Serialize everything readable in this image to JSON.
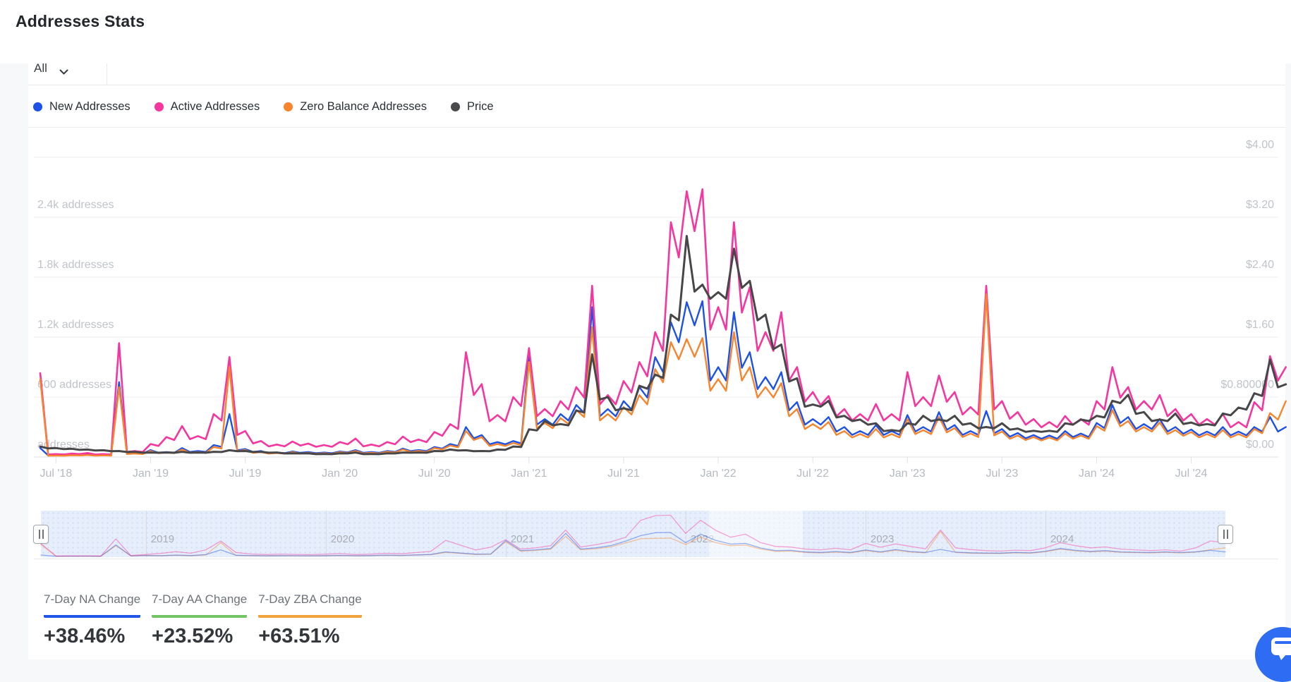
{
  "header": {
    "title": "Addresses Stats"
  },
  "toolbar": {
    "range_dropdown_label": "All"
  },
  "legend": {
    "items": [
      {
        "label": "New Addresses",
        "color": "#1d51e8"
      },
      {
        "label": "Active Addresses",
        "color": "#f6369f"
      },
      {
        "label": "Zero Balance Addresses",
        "color": "#f7852e"
      },
      {
        "label": "Price",
        "color": "#4a4a4c"
      }
    ]
  },
  "stats": [
    {
      "label": "7-Day NA Change",
      "value": "+38.46%",
      "underline_color": "#2256e8"
    },
    {
      "label": "7-Day AA Change",
      "value": "+23.52%",
      "underline_color": "#73c464"
    },
    {
      "label": "7-Day ZBA Change",
      "value": "+63.51%",
      "underline_color": "#f2a23b"
    }
  ],
  "chat": {
    "icon": "chat-bubble-icon",
    "color": "#2e6cf3"
  },
  "chart_data": {
    "type": "line",
    "title": "Addresses Stats",
    "grid": true,
    "legend_position": "top",
    "ylim_addresses": [
      0,
      3000
    ],
    "ylim_price": [
      0,
      4
    ],
    "y_left_axis": {
      "unit": "addresses",
      "gridlines": [
        {
          "value": 2400,
          "label": "2.4k addresses"
        },
        {
          "value": 1800,
          "label": "1.8k addresses"
        },
        {
          "value": 1200,
          "label": "1.2k addresses"
        },
        {
          "value": 600,
          "label": "600 addresses"
        },
        {
          "value": 0,
          "label": "addresses"
        }
      ]
    },
    "y_right_axis": {
      "unit": "USD",
      "gridlines": [
        {
          "value": 4.0,
          "label": "$4.00"
        },
        {
          "value": 3.2,
          "label": "$3.20"
        },
        {
          "value": 2.4,
          "label": "$2.40"
        },
        {
          "value": 1.6,
          "label": "$1.60"
        },
        {
          "value": 0.8,
          "label": "$0.800000"
        },
        {
          "value": 0.0,
          "label": "$0.00"
        }
      ]
    },
    "x_tick_labels": [
      {
        "month": "2018-07",
        "label": "Jul '18"
      },
      {
        "month": "2019-01",
        "label": "Jan '19"
      },
      {
        "month": "2019-07",
        "label": "Jul '19"
      },
      {
        "month": "2020-01",
        "label": "Jan '20"
      },
      {
        "month": "2020-07",
        "label": "Jul '20"
      },
      {
        "month": "2021-01",
        "label": "Jan '21"
      },
      {
        "month": "2021-07",
        "label": "Jul '21"
      },
      {
        "month": "2022-01",
        "label": "Jan '22"
      },
      {
        "month": "2022-07",
        "label": "Jul '22"
      },
      {
        "month": "2023-01",
        "label": "Jan '23"
      },
      {
        "month": "2023-07",
        "label": "Jul '23"
      },
      {
        "month": "2024-01",
        "label": "Jan '24"
      },
      {
        "month": "2024-07",
        "label": "Jul '24"
      }
    ],
    "brush_years": [
      "2019",
      "2020",
      "2021",
      "2022",
      "2023",
      "2024"
    ],
    "x_months": [
      "2018-06",
      "2018-07",
      "2018-08",
      "2018-09",
      "2018-10",
      "2018-11",
      "2018-12",
      "2019-01",
      "2019-02",
      "2019-03",
      "2019-04",
      "2019-05",
      "2019-06",
      "2019-07",
      "2019-08",
      "2019-09",
      "2019-10",
      "2019-11",
      "2019-12",
      "2020-01",
      "2020-02",
      "2020-03",
      "2020-04",
      "2020-05",
      "2020-06",
      "2020-07",
      "2020-08",
      "2020-09",
      "2020-10",
      "2020-11",
      "2020-12",
      "2021-01",
      "2021-02",
      "2021-03",
      "2021-04",
      "2021-05",
      "2021-06",
      "2021-07",
      "2021-08",
      "2021-09",
      "2021-10",
      "2021-11",
      "2021-12",
      "2022-01",
      "2022-02",
      "2022-03",
      "2022-04",
      "2022-05",
      "2022-06",
      "2022-07",
      "2022-08",
      "2022-09",
      "2022-10",
      "2022-11",
      "2022-12",
      "2023-01",
      "2023-02",
      "2023-03",
      "2023-04",
      "2023-05",
      "2023-06",
      "2023-07",
      "2023-08",
      "2023-09",
      "2023-10",
      "2023-11",
      "2023-12",
      "2024-01",
      "2024-02",
      "2024-03",
      "2024-04",
      "2024-05",
      "2024-06",
      "2024-07",
      "2024-08",
      "2024-09",
      "2024-10",
      "2024-11",
      "2024-12",
      "2025-01"
    ],
    "series": [
      {
        "name": "New Addresses",
        "color": "#1d51e8",
        "axis": "addresses",
        "width": 2.4,
        "values": [
          90,
          20,
          22,
          25,
          20,
          750,
          40,
          70,
          50,
          90,
          60,
          120,
          430,
          80,
          60,
          45,
          55,
          50,
          45,
          55,
          70,
          50,
          60,
          85,
          70,
          100,
          130,
          300,
          220,
          150,
          160,
          1030,
          380,
          430,
          520,
          1500,
          480,
          560,
          700,
          1000,
          1350,
          1550,
          1560,
          900,
          1450,
          1050,
          800,
          850,
          550,
          380,
          400,
          300,
          260,
          320,
          260,
          420,
          300,
          450,
          320,
          260,
          460,
          280,
          240,
          220,
          215,
          260,
          235,
          340,
          520,
          400,
          330,
          380,
          300,
          275,
          255,
          300,
          255,
          300,
          400,
          300
        ]
      },
      {
        "name": "Active Addresses",
        "color": "#f6369f",
        "axis": "addresses",
        "width": 2.6,
        "values": [
          840,
          30,
          35,
          40,
          30,
          1140,
          60,
          130,
          200,
          310,
          210,
          430,
          1000,
          260,
          160,
          125,
          155,
          135,
          120,
          150,
          185,
          125,
          150,
          205,
          175,
          250,
          330,
          1050,
          730,
          420,
          600,
          1090,
          480,
          560,
          700,
          1714,
          620,
          760,
          950,
          1250,
          2350,
          2660,
          2680,
          1500,
          2350,
          1700,
          1250,
          1450,
          900,
          650,
          610,
          480,
          430,
          530,
          430,
          850,
          600,
          816,
          650,
          500,
          1714,
          560,
          450,
          380,
          350,
          410,
          380,
          560,
          900,
          700,
          560,
          620,
          480,
          430,
          380,
          430,
          350,
          550,
          1010,
          900
        ]
      },
      {
        "name": "Zero Balance Addresses",
        "color": "#f7852e",
        "axis": "addresses",
        "width": 2.4,
        "values": [
          780,
          15,
          18,
          20,
          16,
          700,
          35,
          60,
          45,
          75,
          50,
          100,
          900,
          70,
          50,
          40,
          48,
          42,
          38,
          48,
          60,
          42,
          52,
          75,
          60,
          90,
          115,
          260,
          200,
          130,
          140,
          950,
          340,
          390,
          470,
          1300,
          430,
          500,
          620,
          880,
          1150,
          1180,
          1190,
          780,
          1250,
          900,
          700,
          740,
          480,
          330,
          350,
          260,
          230,
          280,
          230,
          380,
          270,
          400,
          290,
          235,
          1630,
          255,
          215,
          200,
          195,
          235,
          215,
          310,
          470,
          360,
          300,
          345,
          270,
          250,
          230,
          270,
          230,
          280,
          440,
          560
        ]
      },
      {
        "name": "Price",
        "color": "#474749",
        "axis": "price",
        "width": 3,
        "values": [
          0.14,
          0.12,
          0.11,
          0.1,
          0.09,
          0.08,
          0.07,
          0.06,
          0.06,
          0.07,
          0.06,
          0.07,
          0.09,
          0.08,
          0.07,
          0.06,
          0.05,
          0.05,
          0.04,
          0.05,
          0.06,
          0.04,
          0.05,
          0.06,
          0.06,
          0.08,
          0.1,
          0.09,
          0.08,
          0.1,
          0.14,
          0.37,
          0.48,
          0.44,
          0.62,
          1.37,
          0.8,
          0.65,
          0.95,
          1.1,
          1.9,
          2.95,
          2.3,
          2.2,
          2.78,
          2.35,
          1.9,
          1.5,
          1.05,
          0.7,
          0.75,
          0.55,
          0.5,
          0.45,
          0.36,
          0.45,
          0.55,
          0.5,
          0.55,
          0.45,
          0.4,
          0.45,
          0.38,
          0.35,
          0.35,
          0.45,
          0.5,
          0.55,
          0.75,
          0.83,
          0.6,
          0.5,
          0.58,
          0.46,
          0.44,
          0.58,
          0.66,
          0.85,
          1.3,
          0.97
        ]
      }
    ]
  }
}
